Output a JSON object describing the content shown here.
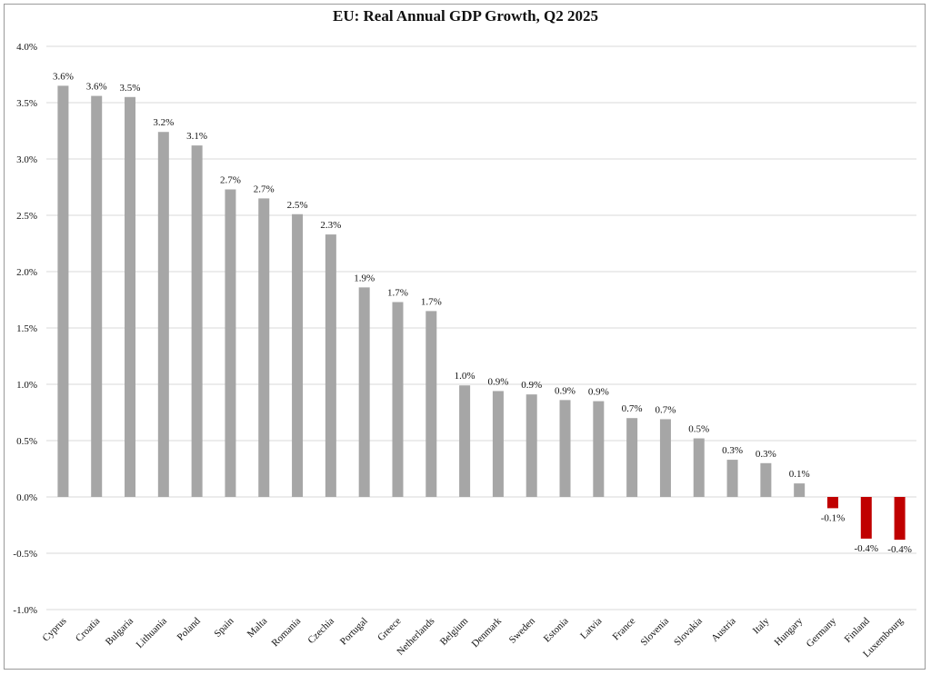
{
  "chart_data": {
    "type": "bar",
    "title": "EU: Real Annual GDP Growth, Q2 2025",
    "categories": [
      "Cyprus",
      "Croatia",
      "Bulgaria",
      "Lithuania",
      "Poland",
      "Spain",
      "Malta",
      "Romania",
      "Czechia",
      "Portugal",
      "Greece",
      "Netherlands",
      "Belgium",
      "Denmark",
      "Sweden",
      "Estonia",
      "Latvia",
      "France",
      "Slovenia",
      "Slovakia",
      "Austria",
      "Italy",
      "Hungary",
      "Germany",
      "Finland",
      "Luxembourg"
    ],
    "values": [
      3.65,
      3.56,
      3.55,
      3.24,
      3.12,
      2.73,
      2.65,
      2.51,
      2.33,
      1.86,
      1.73,
      1.65,
      0.99,
      0.94,
      0.91,
      0.86,
      0.85,
      0.7,
      0.69,
      0.52,
      0.33,
      0.3,
      0.12,
      -0.1,
      -0.37,
      -0.38
    ],
    "data_labels": [
      "3.6%",
      "3.6%",
      "3.5%",
      "3.2%",
      "3.1%",
      "2.7%",
      "2.7%",
      "2.5%",
      "2.3%",
      "1.9%",
      "1.7%",
      "1.7%",
      "1.0%",
      "0.9%",
      "0.9%",
      "0.9%",
      "0.9%",
      "0.7%",
      "0.7%",
      "0.5%",
      "0.3%",
      "0.3%",
      "0.1%",
      "-0.1%",
      "-0.4%",
      "-0.4%"
    ],
    "ylim": [
      -1.0,
      4.0
    ],
    "yticks": [
      "4.0%",
      "3.5%",
      "3.0%",
      "2.5%",
      "2.0%",
      "1.5%",
      "1.0%",
      "0.5%",
      "0.0%",
      "-0.5%",
      "-1.0%"
    ],
    "ytick_values": [
      4.0,
      3.5,
      3.0,
      2.5,
      2.0,
      1.5,
      1.0,
      0.5,
      0.0,
      -0.5,
      -1.0
    ],
    "xlabel": "",
    "ylabel": "",
    "grid": true,
    "legend": "none",
    "colors": {
      "positive": "#a6a6a6",
      "negative": "#c00000",
      "grid": "#d9d9d9"
    }
  }
}
